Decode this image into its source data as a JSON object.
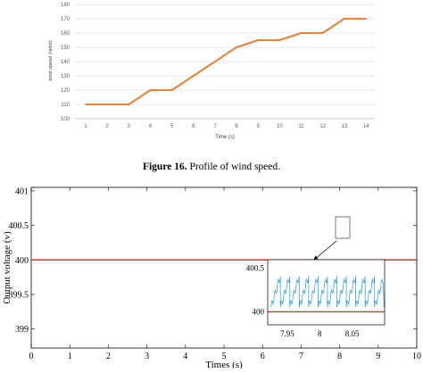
{
  "caption": {
    "figure_label": "Figure 16.",
    "text": " Profile of wind speed."
  },
  "chart_data": [
    {
      "type": "line",
      "xlabel": "Time (s)",
      "ylabel": "wind speed (rad/s)",
      "xlim": [
        1,
        14
      ],
      "ylim": [
        100,
        180
      ],
      "x_ticks": [
        "1",
        "2",
        "3",
        "4",
        "5",
        "6",
        "7",
        "8",
        "9",
        "10",
        "11",
        "12",
        "13",
        "14"
      ],
      "y_ticks": [
        "100",
        "110",
        "120",
        "130",
        "140",
        "150",
        "160",
        "170",
        "180"
      ],
      "grid": "horizontal",
      "color": "#ed7d31",
      "x": [
        1,
        3,
        4,
        5,
        8,
        9,
        10,
        11,
        12,
        13,
        14
      ],
      "y": [
        110,
        110,
        120,
        120,
        150,
        155,
        155,
        160,
        160,
        170,
        170
      ]
    },
    {
      "type": "line",
      "xlabel": "Times (s)",
      "ylabel": "Output voltage (v)",
      "xlim": [
        0,
        10
      ],
      "ylim": [
        398.75,
        401.05
      ],
      "x_ticks": [
        "0",
        "1",
        "2",
        "3",
        "4",
        "5",
        "6",
        "7",
        "8",
        "9",
        "10"
      ],
      "y_ticks": [
        "399",
        "399.5",
        "400",
        "400.5",
        "401"
      ],
      "series": [
        {
          "values": "ripple 400.7 to 399.3 decaying to about 400.05 to 399.95",
          "color": "#1f9be6"
        },
        {
          "values": "constant 400",
          "color": "#e03030"
        }
      ],
      "inset": {
        "xlim": [
          7.92,
          8.1
        ],
        "ylim": [
          399.85,
          400.6
        ],
        "x_ticks": [
          "7.95",
          "8",
          "8.05"
        ],
        "y_ticks": [
          "400",
          "400.5"
        ]
      }
    }
  ]
}
